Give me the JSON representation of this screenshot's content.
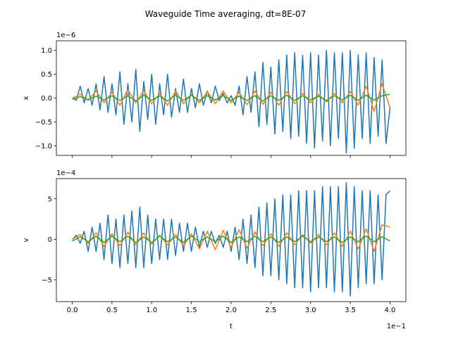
{
  "figure": {
    "title": "Waveguide Time averaging, dt=8E-07"
  },
  "chart_data": [
    {
      "type": "line",
      "ylabel": "x",
      "xlabel": "",
      "y_offset_label": "1e−6",
      "xlim": [
        -0.02,
        0.42
      ],
      "ylim": [
        -1.2,
        1.2
      ],
      "x_ticks": [
        0.0,
        0.05,
        0.1,
        0.15,
        0.2,
        0.25,
        0.3,
        0.35,
        0.4
      ],
      "x_tick_labels_visible": false,
      "y_ticks": [
        -1.0,
        -0.5,
        0.0,
        0.5,
        1.0
      ],
      "y_tick_labels": [
        "−1.0",
        "−0.5",
        "0.0",
        "0.5",
        "1.0"
      ],
      "grid": false,
      "legend": "none",
      "series": [
        {
          "color": "#1f77b4",
          "x": [
            0.0,
            0.005,
            0.01,
            0.015,
            0.02,
            0.025,
            0.03,
            0.035,
            0.04,
            0.045,
            0.05,
            0.055,
            0.06,
            0.065,
            0.07,
            0.075,
            0.08,
            0.085,
            0.09,
            0.095,
            0.1,
            0.105,
            0.11,
            0.115,
            0.12,
            0.125,
            0.13,
            0.135,
            0.14,
            0.145,
            0.15,
            0.155,
            0.16,
            0.165,
            0.17,
            0.175,
            0.18,
            0.185,
            0.19,
            0.195,
            0.2,
            0.205,
            0.21,
            0.215,
            0.22,
            0.225,
            0.23,
            0.235,
            0.24,
            0.245,
            0.25,
            0.255,
            0.26,
            0.265,
            0.27,
            0.275,
            0.28,
            0.285,
            0.29,
            0.295,
            0.3,
            0.305,
            0.31,
            0.315,
            0.32,
            0.325,
            0.33,
            0.335,
            0.34,
            0.345,
            0.35,
            0.355,
            0.36,
            0.365,
            0.37,
            0.375,
            0.38,
            0.385,
            0.39,
            0.395,
            0.4
          ],
          "values": [
            0.0,
            -0.05,
            0.25,
            -0.1,
            0.2,
            -0.15,
            0.3,
            -0.25,
            0.45,
            -0.3,
            0.3,
            -0.35,
            0.55,
            -0.55,
            0.3,
            -0.5,
            0.6,
            -0.7,
            0.35,
            -0.45,
            0.5,
            -0.55,
            0.3,
            -0.35,
            0.5,
            -0.4,
            0.2,
            -0.3,
            0.4,
            -0.3,
            0.2,
            -0.2,
            0.3,
            -0.15,
            0.15,
            -0.1,
            0.25,
            -0.05,
            0.1,
            -0.1,
            0.05,
            -0.15,
            0.25,
            -0.35,
            0.45,
            -0.3,
            0.55,
            -0.6,
            0.75,
            -0.55,
            0.65,
            -0.75,
            0.8,
            -0.7,
            0.9,
            -0.85,
            0.95,
            -0.8,
            0.9,
            -0.95,
            0.95,
            -1.05,
            0.9,
            -0.9,
            1.0,
            -1.0,
            0.95,
            -0.85,
            0.95,
            -1.15,
            1.0,
            -1.05,
            0.9,
            -0.85,
            0.95,
            -0.95,
            0.85,
            -0.8,
            0.8,
            -0.95,
            -0.2
          ]
        },
        {
          "color": "#ff7f0e",
          "x": [
            0.0,
            0.01,
            0.02,
            0.03,
            0.04,
            0.05,
            0.06,
            0.07,
            0.08,
            0.09,
            0.1,
            0.11,
            0.12,
            0.13,
            0.14,
            0.15,
            0.16,
            0.17,
            0.18,
            0.19,
            0.2,
            0.21,
            0.22,
            0.23,
            0.24,
            0.25,
            0.26,
            0.27,
            0.28,
            0.29,
            0.3,
            0.31,
            0.32,
            0.33,
            0.34,
            0.35,
            0.36,
            0.37,
            0.38,
            0.39,
            0.4
          ],
          "values": [
            0.0,
            0.08,
            -0.05,
            0.15,
            -0.1,
            0.12,
            -0.15,
            0.18,
            -0.1,
            0.15,
            -0.12,
            0.1,
            -0.15,
            0.15,
            -0.12,
            0.08,
            -0.1,
            0.14,
            -0.12,
            0.15,
            -0.1,
            0.12,
            -0.14,
            0.15,
            -0.13,
            0.12,
            -0.15,
            0.14,
            -0.12,
            0.1,
            -0.1,
            0.08,
            -0.08,
            0.1,
            -0.1,
            0.14,
            -0.15,
            0.25,
            -0.28,
            0.3,
            -0.2
          ]
        },
        {
          "color": "#2ca02c",
          "x": [
            0.0,
            0.01,
            0.02,
            0.03,
            0.04,
            0.05,
            0.06,
            0.07,
            0.08,
            0.09,
            0.1,
            0.11,
            0.12,
            0.13,
            0.14,
            0.15,
            0.16,
            0.17,
            0.18,
            0.19,
            0.2,
            0.21,
            0.22,
            0.23,
            0.24,
            0.25,
            0.26,
            0.27,
            0.28,
            0.29,
            0.3,
            0.31,
            0.32,
            0.33,
            0.34,
            0.35,
            0.36,
            0.37,
            0.38,
            0.39,
            0.4
          ],
          "values": [
            -0.02,
            0.03,
            -0.03,
            0.04,
            -0.04,
            0.05,
            -0.05,
            0.05,
            -0.06,
            0.06,
            -0.05,
            0.05,
            -0.06,
            0.06,
            -0.05,
            0.06,
            -0.05,
            0.05,
            -0.04,
            0.05,
            -0.05,
            0.04,
            -0.05,
            0.05,
            -0.06,
            0.05,
            -0.05,
            0.06,
            -0.05,
            0.05,
            -0.04,
            0.04,
            -0.05,
            0.05,
            -0.04,
            0.06,
            -0.05,
            0.06,
            -0.04,
            0.05,
            0.08
          ]
        }
      ]
    },
    {
      "type": "line",
      "ylabel": "v",
      "xlabel": "t",
      "y_offset_label": "1e−4",
      "x_offset_label": "1e−1",
      "xlim": [
        -0.02,
        0.42
      ],
      "ylim": [
        -7.7,
        7.5
      ],
      "x_ticks": [
        0.0,
        0.05,
        0.1,
        0.15,
        0.2,
        0.25,
        0.3,
        0.35,
        0.4
      ],
      "x_tick_labels": [
        "0.0",
        "0.5",
        "1.0",
        "1.5",
        "2.0",
        "2.5",
        "3.0",
        "3.5",
        "4.0"
      ],
      "y_ticks": [
        -5,
        0,
        5
      ],
      "y_tick_labels": [
        "−5",
        "0",
        "5"
      ],
      "grid": false,
      "legend": "none",
      "series": [
        {
          "color": "#1f77b4",
          "x": [
            0.0,
            0.005,
            0.01,
            0.015,
            0.02,
            0.025,
            0.03,
            0.035,
            0.04,
            0.045,
            0.05,
            0.055,
            0.06,
            0.065,
            0.07,
            0.075,
            0.08,
            0.085,
            0.09,
            0.095,
            0.1,
            0.105,
            0.11,
            0.115,
            0.12,
            0.125,
            0.13,
            0.135,
            0.14,
            0.145,
            0.15,
            0.155,
            0.16,
            0.165,
            0.17,
            0.175,
            0.18,
            0.185,
            0.19,
            0.195,
            0.2,
            0.205,
            0.21,
            0.215,
            0.22,
            0.225,
            0.23,
            0.235,
            0.24,
            0.245,
            0.25,
            0.255,
            0.26,
            0.265,
            0.27,
            0.275,
            0.28,
            0.285,
            0.29,
            0.295,
            0.3,
            0.305,
            0.31,
            0.315,
            0.32,
            0.325,
            0.33,
            0.335,
            0.34,
            0.345,
            0.35,
            0.355,
            0.36,
            0.365,
            0.37,
            0.375,
            0.38,
            0.385,
            0.39,
            0.395,
            0.4
          ],
          "values": [
            0.0,
            0.5,
            -0.5,
            1.0,
            -1.5,
            1.5,
            -1.5,
            2.0,
            -2.5,
            3.0,
            -3.0,
            2.5,
            -3.5,
            3.0,
            -3.0,
            3.5,
            -3.5,
            4.0,
            -3.5,
            3.0,
            -3.0,
            2.5,
            -2.5,
            2.5,
            -2.5,
            2.5,
            -2.0,
            2.0,
            -1.5,
            2.0,
            -1.5,
            1.5,
            -1.0,
            1.0,
            -1.0,
            1.0,
            -0.5,
            0.5,
            -1.0,
            1.0,
            -1.5,
            1.5,
            -2.5,
            2.5,
            -3.0,
            3.0,
            -3.5,
            4.0,
            -4.5,
            4.5,
            -4.5,
            5.0,
            -5.0,
            5.5,
            -5.5,
            5.5,
            -6.0,
            6.0,
            -6.0,
            6.0,
            -6.5,
            6.0,
            -6.0,
            6.5,
            -6.0,
            6.5,
            -6.5,
            6.5,
            -6.5,
            7.0,
            -7.0,
            6.5,
            -6.0,
            6.0,
            -5.5,
            6.0,
            -5.5,
            5.5,
            -5.0,
            5.5,
            6.0
          ]
        },
        {
          "color": "#ff7f0e",
          "x": [
            0.0,
            0.01,
            0.02,
            0.03,
            0.04,
            0.05,
            0.06,
            0.07,
            0.08,
            0.09,
            0.1,
            0.11,
            0.12,
            0.13,
            0.14,
            0.15,
            0.16,
            0.17,
            0.18,
            0.19,
            0.2,
            0.21,
            0.22,
            0.23,
            0.24,
            0.25,
            0.26,
            0.27,
            0.28,
            0.29,
            0.3,
            0.31,
            0.32,
            0.33,
            0.34,
            0.35,
            0.36,
            0.37,
            0.38,
            0.39,
            0.4
          ],
          "values": [
            0.0,
            0.6,
            -0.5,
            0.8,
            -0.9,
            0.7,
            -0.8,
            0.9,
            -0.7,
            0.8,
            -0.6,
            0.5,
            -0.7,
            0.6,
            -0.8,
            0.7,
            -1.2,
            1.0,
            -1.3,
            1.1,
            -1.0,
            1.2,
            -1.1,
            0.9,
            -0.8,
            0.7,
            -0.9,
            0.8,
            -0.7,
            0.6,
            -0.5,
            0.6,
            -0.7,
            0.8,
            -0.9,
            1.0,
            -1.2,
            1.3,
            -1.5,
            1.8,
            1.5
          ]
        },
        {
          "color": "#2ca02c",
          "x": [
            0.0,
            0.01,
            0.02,
            0.03,
            0.04,
            0.05,
            0.06,
            0.07,
            0.08,
            0.09,
            0.1,
            0.11,
            0.12,
            0.13,
            0.14,
            0.15,
            0.16,
            0.17,
            0.18,
            0.19,
            0.2,
            0.21,
            0.22,
            0.23,
            0.24,
            0.25,
            0.26,
            0.27,
            0.28,
            0.29,
            0.3,
            0.31,
            0.32,
            0.33,
            0.34,
            0.35,
            0.36,
            0.37,
            0.38,
            0.39,
            0.4
          ],
          "values": [
            -0.2,
            0.3,
            -0.3,
            0.4,
            -0.4,
            0.4,
            -0.3,
            0.4,
            -0.4,
            0.3,
            -0.4,
            0.4,
            -0.3,
            0.3,
            -0.4,
            0.4,
            -0.3,
            0.3,
            -0.3,
            0.4,
            -0.4,
            0.3,
            -0.3,
            0.4,
            -0.3,
            0.3,
            -0.4,
            0.3,
            -0.3,
            0.4,
            -0.3,
            0.3,
            -0.3,
            0.3,
            -0.4,
            0.3,
            -0.3,
            0.4,
            -0.3,
            0.3,
            -0.2
          ]
        }
      ]
    }
  ]
}
